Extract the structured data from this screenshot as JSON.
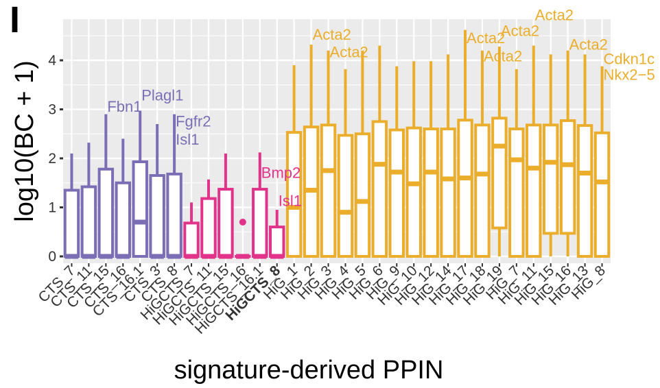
{
  "panel_label": "I",
  "colors": {
    "CTS": "#7B6EB5",
    "HiGCTS": "#E2338A",
    "HiG": "#EBAE2C",
    "panel_bg": "#EBEBEB",
    "grid": "#FFFFFF"
  },
  "chart_data": {
    "type": "boxplot",
    "xlabel": "signature-derived PPIN",
    "ylabel": "log10(BC + 1)",
    "ylim": [
      -0.05,
      4.9
    ],
    "yticks": [
      0,
      1,
      2,
      3,
      4
    ],
    "boxes": [
      {
        "label": "CTS_7",
        "group": "CTS",
        "min": 0,
        "q1": 0,
        "median": 0,
        "q3": 1.35,
        "max": 2.1,
        "outliers": []
      },
      {
        "label": "CTS_11",
        "group": "CTS",
        "min": 0,
        "q1": 0,
        "median": 0,
        "q3": 1.42,
        "max": 2.32,
        "outliers": []
      },
      {
        "label": "CTS_15",
        "group": "CTS",
        "min": 0,
        "q1": 0,
        "median": 0,
        "q3": 1.78,
        "max": 2.9,
        "outliers": []
      },
      {
        "label": "CTS_16",
        "group": "CTS",
        "min": 0,
        "q1": 0,
        "median": 0,
        "q3": 1.5,
        "max": 2.4,
        "outliers": []
      },
      {
        "label": "CTS_16.1",
        "group": "CTS",
        "min": 0,
        "q1": 0,
        "median": 0.7,
        "q3": 1.93,
        "max": 2.97,
        "outliers": []
      },
      {
        "label": "CTS_3",
        "group": "CTS",
        "min": 0,
        "q1": 0,
        "median": 0,
        "q3": 1.65,
        "max": 2.7,
        "outliers": []
      },
      {
        "label": "CTS_8",
        "group": "CTS",
        "min": 0,
        "q1": 0,
        "median": 0,
        "q3": 1.68,
        "max": 2.9,
        "outliers": []
      },
      {
        "label": "HiGCTS_7",
        "group": "HiGCTS",
        "min": 0,
        "q1": 0,
        "median": 0,
        "q3": 0.68,
        "max": 1.1,
        "outliers": []
      },
      {
        "label": "HiGCTS_11",
        "group": "HiGCTS",
        "min": 0,
        "q1": 0,
        "median": 0,
        "q3": 1.18,
        "max": 1.57,
        "outliers": []
      },
      {
        "label": "HiGCTS_15",
        "group": "HiGCTS",
        "min": 0,
        "q1": 0,
        "median": 0,
        "q3": 1.37,
        "max": 2.1,
        "outliers": []
      },
      {
        "label": "HiGCTS_16",
        "group": "HiGCTS",
        "min": 0,
        "q1": 0,
        "median": 0,
        "q3": 0,
        "max": 0,
        "outliers": [
          0.7
        ]
      },
      {
        "label": "HiGCTS_16.1",
        "group": "HiGCTS",
        "min": 0,
        "q1": 0,
        "median": 0,
        "q3": 1.37,
        "max": 2.12,
        "outliers": []
      },
      {
        "label": "HiGCTS_8",
        "group": "HiGCTS",
        "min": 0,
        "q1": 0,
        "median": 0,
        "q3": 0.6,
        "max": 0.95,
        "outliers": []
      },
      {
        "label": "HiG_1",
        "group": "HiG",
        "min": 0,
        "q1": 0,
        "median": 1.0,
        "q3": 2.53,
        "max": 3.9,
        "outliers": []
      },
      {
        "label": "HiG_2",
        "group": "HiG",
        "min": 0,
        "q1": 0,
        "median": 1.35,
        "q3": 2.64,
        "max": 4.32,
        "outliers": []
      },
      {
        "label": "HiG_3",
        "group": "HiG",
        "min": 0,
        "q1": 0,
        "median": 1.75,
        "q3": 2.68,
        "max": 4.2,
        "outliers": []
      },
      {
        "label": "HiG_4",
        "group": "HiG",
        "min": 0,
        "q1": 0,
        "median": 0.9,
        "q3": 2.47,
        "max": 3.82,
        "outliers": []
      },
      {
        "label": "HiG_5",
        "group": "HiG",
        "min": 0,
        "q1": 0,
        "median": 1.12,
        "q3": 2.5,
        "max": 4.2,
        "outliers": []
      },
      {
        "label": "HiG_6",
        "group": "HiG",
        "min": 0,
        "q1": 0,
        "median": 1.88,
        "q3": 2.75,
        "max": 4.3,
        "outliers": []
      },
      {
        "label": "HiG_9",
        "group": "HiG",
        "min": 0,
        "q1": 0,
        "median": 1.72,
        "q3": 2.58,
        "max": 3.88,
        "outliers": []
      },
      {
        "label": "HiG_10",
        "group": "HiG",
        "min": 0,
        "q1": 0,
        "median": 1.48,
        "q3": 2.62,
        "max": 3.98,
        "outliers": []
      },
      {
        "label": "HiG_12",
        "group": "HiG",
        "min": 0,
        "q1": 0,
        "median": 1.72,
        "q3": 2.6,
        "max": 3.98,
        "outliers": []
      },
      {
        "label": "HiG_14",
        "group": "HiG",
        "min": 0,
        "q1": 0,
        "median": 1.58,
        "q3": 2.6,
        "max": 4.12,
        "outliers": []
      },
      {
        "label": "HiG_17",
        "group": "HiG",
        "min": 0,
        "q1": 0,
        "median": 1.6,
        "q3": 2.78,
        "max": 4.62,
        "outliers": []
      },
      {
        "label": "HiG_18",
        "group": "HiG",
        "min": 0,
        "q1": 0,
        "median": 1.68,
        "q3": 2.68,
        "max": 4.2,
        "outliers": []
      },
      {
        "label": "HiG_19",
        "group": "HiG",
        "min": 0,
        "q1": 0.58,
        "median": 2.25,
        "q3": 2.82,
        "max": 4.28,
        "outliers": []
      },
      {
        "label": "HiG_7",
        "group": "HiG",
        "min": 0,
        "q1": 0,
        "median": 1.97,
        "q3": 2.6,
        "max": 3.82,
        "outliers": []
      },
      {
        "label": "HiG_11",
        "group": "HiG",
        "min": 0,
        "q1": 0,
        "median": 1.8,
        "q3": 2.68,
        "max": 4.3,
        "outliers": []
      },
      {
        "label": "HiG_15",
        "group": "HiG",
        "min": 0,
        "q1": 0.47,
        "median": 1.92,
        "q3": 2.68,
        "max": 4.12,
        "outliers": []
      },
      {
        "label": "HiG_16",
        "group": "HiG",
        "min": 0,
        "q1": 0.47,
        "median": 1.87,
        "q3": 2.77,
        "max": 4.2,
        "outliers": []
      },
      {
        "label": "HiG_13",
        "group": "HiG",
        "min": 0,
        "q1": 0,
        "median": 1.7,
        "q3": 2.67,
        "max": 4.12,
        "outliers": []
      },
      {
        "label": "HiG_8",
        "group": "HiG",
        "min": 0,
        "q1": 0,
        "median": 1.52,
        "q3": 2.52,
        "max": 3.88,
        "outliers": []
      }
    ],
    "bold_tick_index": 12,
    "annotations": [
      {
        "text": "Fbn1",
        "box": 2,
        "y": 2.95,
        "group": "CTS"
      },
      {
        "text": "Plagl1",
        "box": 4,
        "y": 3.18,
        "group": "CTS"
      },
      {
        "text": "Fgfr2",
        "box": 6,
        "y": 2.65,
        "group": "CTS"
      },
      {
        "text": "Isl1",
        "box": 6,
        "y": 2.28,
        "group": "CTS"
      },
      {
        "text": "Bmp2",
        "box": 11,
        "y": 1.6,
        "group": "HiGCTS"
      },
      {
        "text": "Isl1",
        "box": 12,
        "y": 1.03,
        "group": "HiGCTS"
      },
      {
        "text": "Acta2",
        "box": 14,
        "y": 4.42,
        "group": "HiG"
      },
      {
        "text": "Acta2",
        "box": 15,
        "y": 4.06,
        "group": "HiG"
      },
      {
        "text": "Acta2",
        "box": 23,
        "y": 4.35,
        "group": "HiG"
      },
      {
        "text": "Acta2",
        "box": 24,
        "y": 3.98,
        "group": "HiG"
      },
      {
        "text": "Acta2",
        "box": 25,
        "y": 4.5,
        "group": "HiG"
      },
      {
        "text": "Acta2",
        "box": 27,
        "y": 4.82,
        "group": "HiG"
      },
      {
        "text": "Acta2",
        "box": 29,
        "y": 4.22,
        "group": "HiG"
      },
      {
        "text": "Cdkn1c",
        "box": 31,
        "y": 3.92,
        "group": "HiG"
      },
      {
        "text": "Nkx2−5",
        "box": 31,
        "y": 3.6,
        "group": "HiG"
      }
    ]
  }
}
